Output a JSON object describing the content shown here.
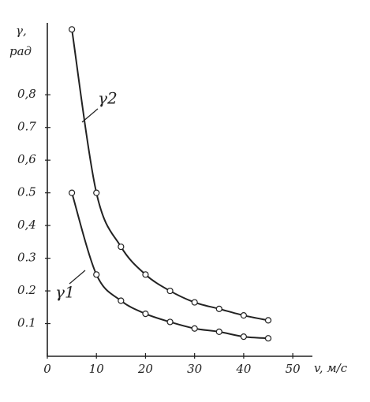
{
  "chart_data": {
    "type": "line",
    "y_label": "γ,",
    "y_unit": "рад",
    "x_label": "v, м/с",
    "xlim": [
      0,
      54
    ],
    "ylim": [
      0,
      1.02
    ],
    "xticks": [
      0,
      10,
      20,
      30,
      40,
      50
    ],
    "yticks": [
      {
        "value": 0.1,
        "label": "0.1"
      },
      {
        "value": 0.2,
        "label": "0.2"
      },
      {
        "value": 0.3,
        "label": "0.3"
      },
      {
        "value": 0.4,
        "label": "0,4"
      },
      {
        "value": 0.5,
        "label": "0.5"
      },
      {
        "value": 0.6,
        "label": "0,6"
      },
      {
        "value": 0.7,
        "label": "0.7"
      },
      {
        "value": 0.8,
        "label": "0,8"
      }
    ],
    "x": [
      5,
      10,
      15,
      20,
      25,
      30,
      35,
      40,
      45
    ],
    "series": [
      {
        "name": "γ1",
        "color": "#222222",
        "values": [
          0.5,
          0.25,
          0.17,
          0.13,
          0.105,
          0.085,
          0.075,
          0.06,
          0.055
        ]
      },
      {
        "name": "γ2",
        "color": "#222222",
        "values": [
          1.0,
          0.5,
          0.335,
          0.25,
          0.2,
          0.165,
          0.145,
          0.125,
          0.11
        ]
      }
    ]
  }
}
